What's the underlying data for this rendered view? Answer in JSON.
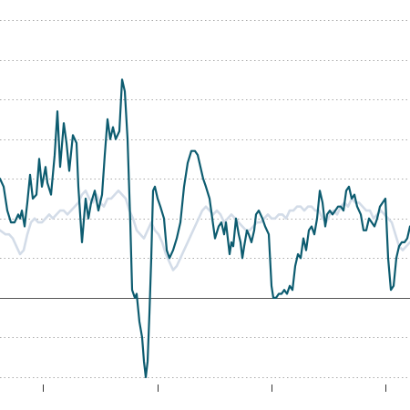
{
  "chart_data": {
    "type": "line",
    "title": "",
    "xlabel": "",
    "ylabel": "",
    "x_ticks": 4,
    "ylim": [
      -2,
      7
    ],
    "y_gridlines": [
      -2,
      -1,
      1,
      2,
      3,
      4,
      5,
      6,
      7
    ],
    "baseline": 0,
    "grid": true,
    "colors": {
      "primary": "#0d5c70",
      "secondary": "#d3dce8",
      "grid": "#aaaaaa",
      "baseline": "#555555"
    },
    "series": [
      {
        "role": "primary",
        "points": [
          [
            0,
            3
          ],
          [
            4,
            2.8
          ],
          [
            8,
            2.2
          ],
          [
            12,
            1.9
          ],
          [
            16,
            1.9
          ],
          [
            20,
            2.1
          ],
          [
            22,
            2.0
          ],
          [
            24,
            2.2
          ],
          [
            27,
            1.8
          ],
          [
            30,
            2.4
          ],
          [
            33,
            3.1
          ],
          [
            36,
            2.5
          ],
          [
            40,
            2.6
          ],
          [
            43,
            3.5
          ],
          [
            46,
            2.8
          ],
          [
            50,
            3.3
          ],
          [
            52,
            2.9
          ],
          [
            56,
            2.6
          ],
          [
            60,
            3.6
          ],
          [
            63,
            4.7
          ],
          [
            66,
            3.3
          ],
          [
            70,
            4.4
          ],
          [
            73,
            3.9
          ],
          [
            76,
            3.2
          ],
          [
            80,
            4.1
          ],
          [
            84,
            3.9
          ],
          [
            86,
            2.8
          ],
          [
            90,
            1.4
          ],
          [
            94,
            2.5
          ],
          [
            97,
            2.0
          ],
          [
            100,
            2.4
          ],
          [
            104,
            2.7
          ],
          [
            108,
            2.2
          ],
          [
            112,
            2.6
          ],
          [
            115,
            3.6
          ],
          [
            118,
            4.5
          ],
          [
            121,
            4.0
          ],
          [
            124,
            4.3
          ],
          [
            127,
            4.0
          ],
          [
            131,
            4.2
          ],
          [
            134,
            5.5
          ],
          [
            137,
            5.2
          ],
          [
            140,
            4.0
          ],
          [
            143,
            1.9
          ],
          [
            145,
            0.2
          ],
          [
            148,
            0.0
          ],
          [
            150,
            0.1
          ],
          [
            153,
            -0.6
          ],
          [
            156,
            -1.0
          ],
          [
            158,
            -1.6
          ],
          [
            160,
            -2.0
          ],
          [
            162,
            -1.6
          ],
          [
            164,
            -0.4
          ],
          [
            166,
            1.0
          ],
          [
            168,
            2.7
          ],
          [
            170,
            2.8
          ],
          [
            173,
            2.5
          ],
          [
            176,
            2.3
          ],
          [
            180,
            2.0
          ],
          [
            183,
            1.2
          ],
          [
            186,
            1.0
          ],
          [
            190,
            1.2
          ],
          [
            194,
            1.5
          ],
          [
            198,
            1.9
          ],
          [
            202,
            2.8
          ],
          [
            206,
            3.4
          ],
          [
            210,
            3.7
          ],
          [
            214,
            3.7
          ],
          [
            217,
            3.6
          ],
          [
            220,
            3.3
          ],
          [
            223,
            3.0
          ],
          [
            226,
            2.8
          ],
          [
            230,
            2.5
          ],
          [
            233,
            2.0
          ],
          [
            236,
            1.5
          ],
          [
            240,
            1.8
          ],
          [
            243,
            1.9
          ],
          [
            246,
            1.6
          ],
          [
            248,
            1.9
          ],
          [
            252,
            1.1
          ],
          [
            254,
            1.4
          ],
          [
            256,
            1.3
          ],
          [
            259,
            2.0
          ],
          [
            262,
            1.6
          ],
          [
            264,
            1.4
          ],
          [
            266,
            1.0
          ],
          [
            268,
            1.3
          ],
          [
            271,
            1.7
          ],
          [
            273,
            1.6
          ],
          [
            276,
            1.4
          ],
          [
            279,
            1.7
          ],
          [
            281,
            2.1
          ],
          [
            284,
            2.2
          ],
          [
            288,
            2.0
          ],
          [
            291,
            1.8
          ],
          [
            295,
            1.6
          ],
          [
            298,
            0.3
          ],
          [
            300,
            0.0
          ],
          [
            303,
            0.0
          ],
          [
            306,
            0.1
          ],
          [
            309,
            0.1
          ],
          [
            312,
            0.2
          ],
          [
            315,
            0.1
          ],
          [
            318,
            0.3
          ],
          [
            321,
            0.2
          ],
          [
            324,
            0.8
          ],
          [
            327,
            1.1
          ],
          [
            330,
            1.0
          ],
          [
            333,
            1.5
          ],
          [
            336,
            1.2
          ],
          [
            339,
            1.7
          ],
          [
            342,
            1.8
          ],
          [
            345,
            1.6
          ],
          [
            348,
            2.0
          ],
          [
            351,
            2.7
          ],
          [
            354,
            2.4
          ],
          [
            357,
            1.8
          ],
          [
            359,
            2.1
          ],
          [
            362,
            2.2
          ],
          [
            365,
            2.1
          ],
          [
            368,
            2.2
          ],
          [
            371,
            2.3
          ],
          [
            374,
            2.3
          ],
          [
            377,
            2.2
          ],
          [
            380,
            2.7
          ],
          [
            383,
            2.8
          ],
          [
            386,
            2.5
          ],
          [
            389,
            2.6
          ],
          [
            392,
            2.3
          ],
          [
            396,
            2.1
          ],
          [
            399,
            1.7
          ],
          [
            402,
            1.7
          ],
          [
            405,
            2.0
          ],
          [
            408,
            1.9
          ],
          [
            411,
            1.8
          ],
          [
            414,
            2.0
          ],
          [
            417,
            2.3
          ],
          [
            420,
            2.4
          ],
          [
            423,
            2.5
          ],
          [
            426,
            1.0
          ],
          [
            429,
            0.2
          ],
          [
            432,
            0.3
          ],
          [
            435,
            1.0
          ],
          [
            438,
            1.3
          ],
          [
            441,
            1.4
          ],
          [
            444,
            1.4
          ],
          [
            447,
            1.5
          ],
          [
            450,
            1.8
          ]
        ]
      },
      {
        "role": "secondary",
        "points": [
          [
            0,
            1.7
          ],
          [
            6,
            1.6
          ],
          [
            10,
            1.6
          ],
          [
            14,
            1.5
          ],
          [
            18,
            1.3
          ],
          [
            22,
            1.1
          ],
          [
            26,
            1.2
          ],
          [
            30,
            1.6
          ],
          [
            34,
            1.9
          ],
          [
            38,
            2.0
          ],
          [
            42,
            1.9
          ],
          [
            46,
            1.9
          ],
          [
            50,
            2.0
          ],
          [
            54,
            2.1
          ],
          [
            58,
            2.0
          ],
          [
            62,
            2.1
          ],
          [
            66,
            2.2
          ],
          [
            70,
            2.2
          ],
          [
            74,
            2.1
          ],
          [
            78,
            2.2
          ],
          [
            82,
            2.3
          ],
          [
            86,
            2.4
          ],
          [
            90,
            2.6
          ],
          [
            94,
            2.7
          ],
          [
            98,
            2.5
          ],
          [
            102,
            2.4
          ],
          [
            106,
            2.6
          ],
          [
            110,
            2.4
          ],
          [
            114,
            2.3
          ],
          [
            118,
            2.5
          ],
          [
            122,
            2.5
          ],
          [
            126,
            2.6
          ],
          [
            130,
            2.7
          ],
          [
            134,
            2.6
          ],
          [
            138,
            2.5
          ],
          [
            142,
            2.2
          ],
          [
            146,
            2.0
          ],
          [
            150,
            1.7
          ],
          [
            154,
            1.6
          ],
          [
            158,
            1.5
          ],
          [
            162,
            1.7
          ],
          [
            166,
            1.9
          ],
          [
            170,
            1.7
          ],
          [
            174,
            1.6
          ],
          [
            178,
            1.4
          ],
          [
            182,
            1.1
          ],
          [
            186,
            0.9
          ],
          [
            190,
            0.7
          ],
          [
            194,
            0.8
          ],
          [
            198,
            1.0
          ],
          [
            202,
            1.2
          ],
          [
            206,
            1.4
          ],
          [
            210,
            1.6
          ],
          [
            214,
            1.8
          ],
          [
            218,
            2.0
          ],
          [
            222,
            2.2
          ],
          [
            226,
            2.3
          ],
          [
            230,
            2.2
          ],
          [
            234,
            2.1
          ],
          [
            238,
            2.2
          ],
          [
            242,
            2.1
          ],
          [
            246,
            1.9
          ],
          [
            250,
            2.0
          ],
          [
            254,
            2.1
          ],
          [
            258,
            2.0
          ],
          [
            262,
            1.9
          ],
          [
            266,
            1.8
          ],
          [
            270,
            1.7
          ],
          [
            274,
            1.7
          ],
          [
            278,
            1.8
          ],
          [
            282,
            1.9
          ],
          [
            286,
            1.9
          ],
          [
            290,
            2.0
          ],
          [
            294,
            2.1
          ],
          [
            298,
            2.0
          ],
          [
            302,
            2.0
          ],
          [
            306,
            2.1
          ],
          [
            310,
            2.1
          ],
          [
            314,
            2.0
          ],
          [
            318,
            2.2
          ],
          [
            322,
            2.2
          ],
          [
            326,
            2.3
          ],
          [
            330,
            2.3
          ],
          [
            334,
            2.2
          ],
          [
            338,
            2.3
          ],
          [
            342,
            2.3
          ],
          [
            346,
            2.2
          ],
          [
            350,
            2.2
          ],
          [
            354,
            2.0
          ],
          [
            358,
            1.9
          ],
          [
            362,
            2.1
          ],
          [
            366,
            2.2
          ],
          [
            370,
            2.1
          ],
          [
            374,
            2.3
          ],
          [
            378,
            2.4
          ],
          [
            382,
            2.3
          ],
          [
            386,
            2.5
          ],
          [
            390,
            2.4
          ],
          [
            394,
            2.4
          ],
          [
            398,
            2.3
          ],
          [
            402,
            2.2
          ],
          [
            406,
            2.2
          ],
          [
            410,
            2.0
          ],
          [
            414,
            2.1
          ],
          [
            418,
            2.2
          ],
          [
            422,
            2.1
          ],
          [
            426,
            2.0
          ],
          [
            430,
            1.9
          ],
          [
            434,
            1.6
          ],
          [
            438,
            1.3
          ],
          [
            442,
            1.2
          ],
          [
            446,
            1.3
          ],
          [
            450,
            1.4
          ]
        ]
      }
    ]
  }
}
